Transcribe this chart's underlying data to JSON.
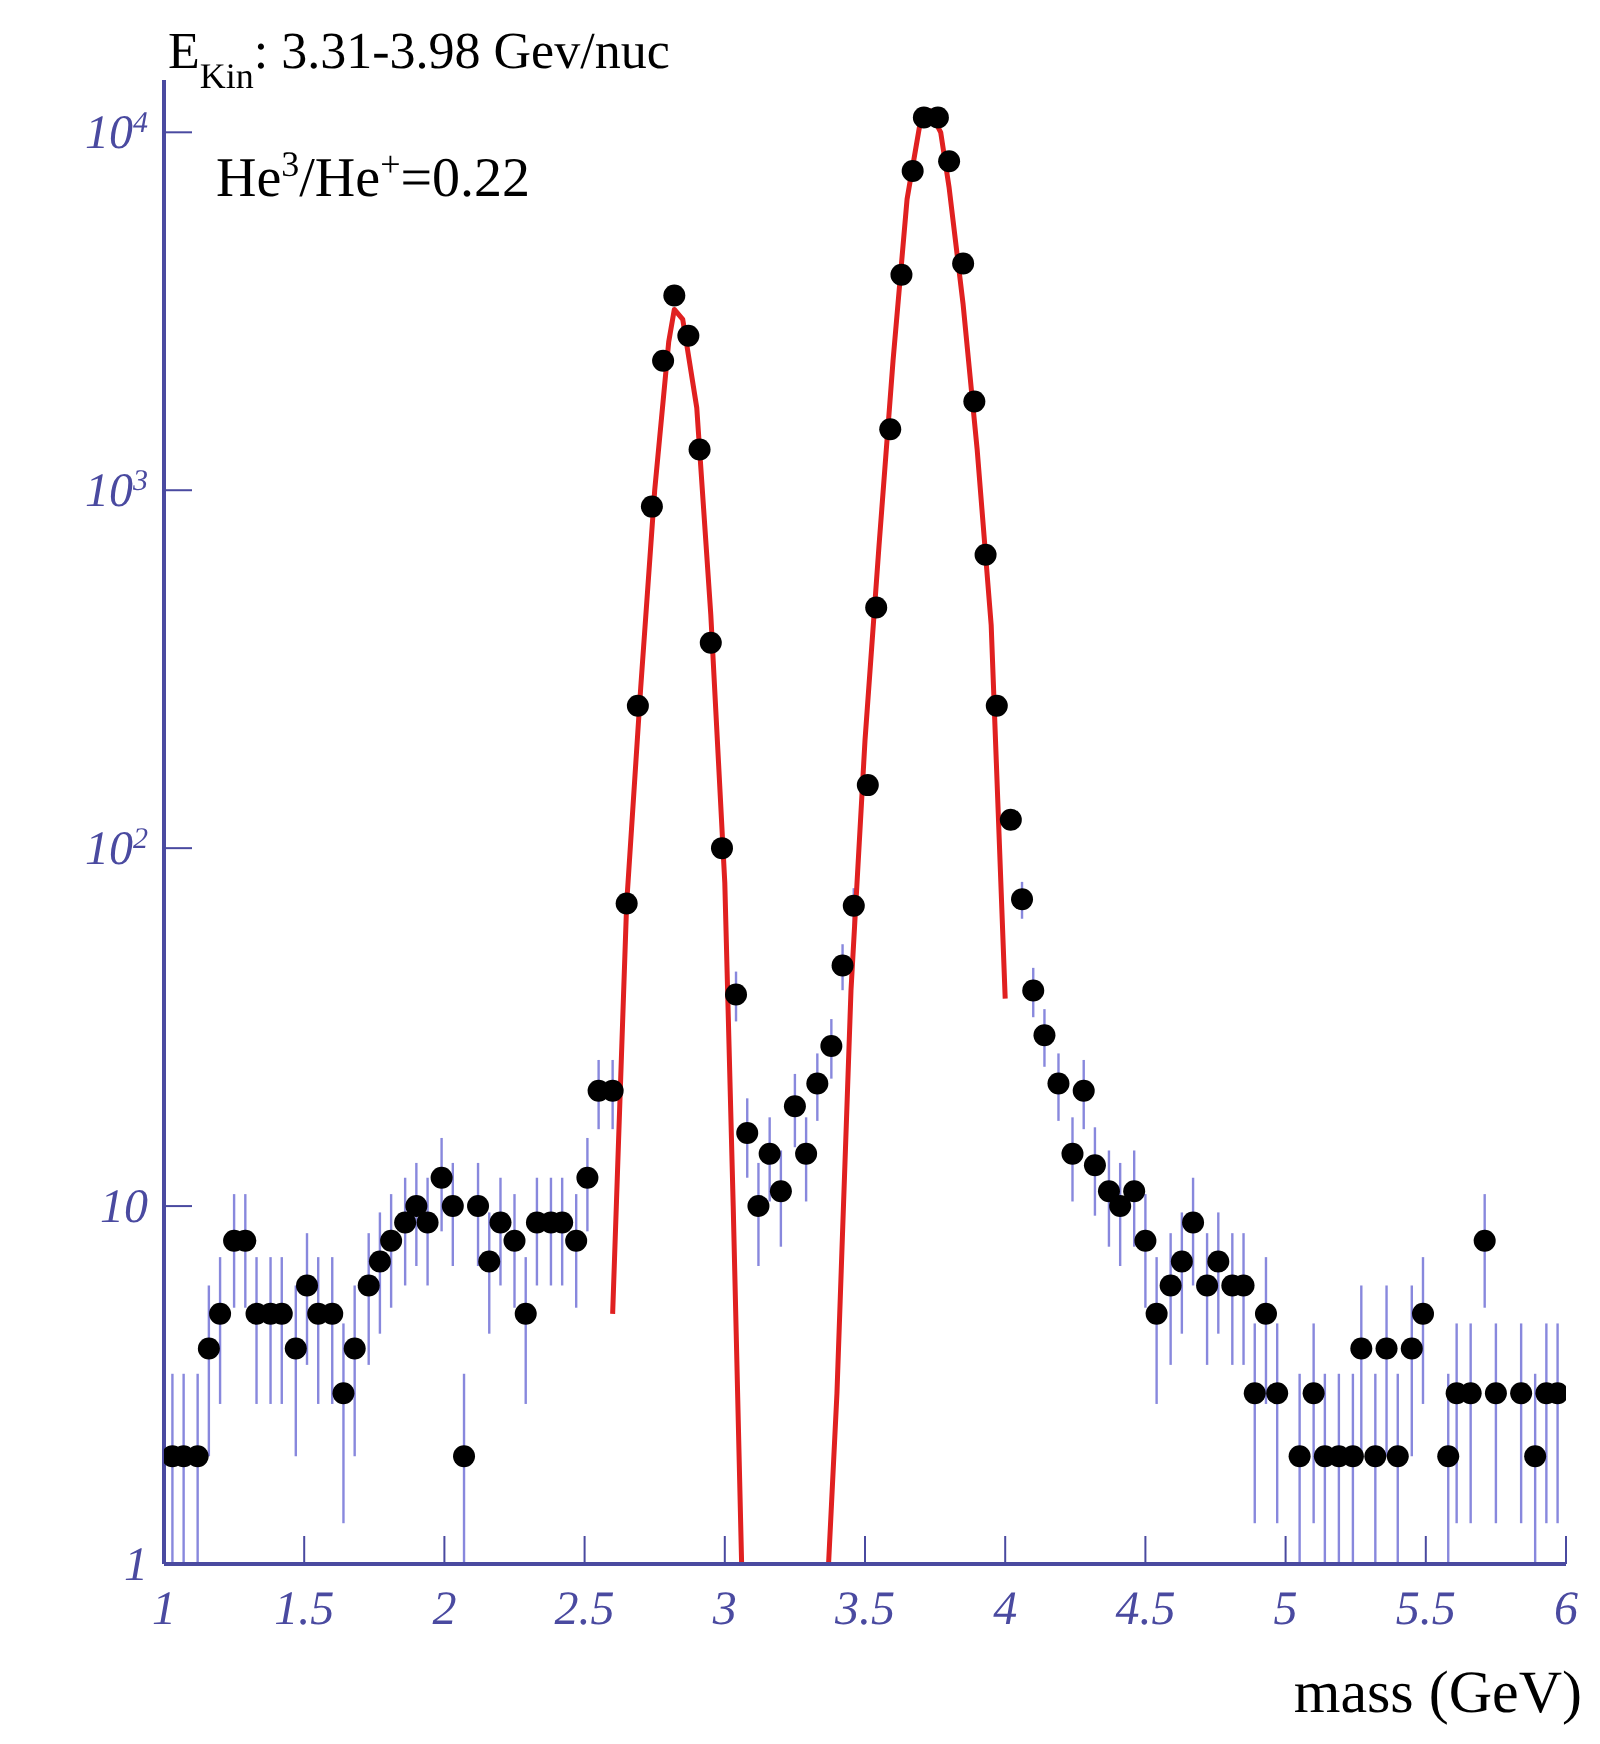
{
  "chart_data": {
    "type": "scatter",
    "title": "E$_{Kin}$: 3.31-3.98 Gev/nuc",
    "xlabel": "mass (GeV)",
    "annotations": [
      "He$^{3}$/He$^{+}$=0.22"
    ],
    "log": "y",
    "xlim": [
      1,
      6
    ],
    "xticks": [
      1,
      1.5,
      2,
      2.5,
      3,
      3.5,
      4,
      4.5,
      5,
      5.5,
      6
    ],
    "ylim": [
      1,
      14000
    ],
    "yticks": [
      1,
      10,
      {
        "value": 100,
        "label": "10$^{2}$"
      },
      {
        "value": 1000,
        "label": "10$^{3}$"
      },
      {
        "value": 10000,
        "label": "10$^{4}$"
      }
    ],
    "grid": false,
    "legend": false,
    "series": [
      {
        "marker": "circle",
        "color": "#000000",
        "x": [
          1.03,
          1.07,
          1.12,
          1.16,
          1.2,
          1.25,
          1.29,
          1.33,
          1.38,
          1.42,
          1.47,
          1.51,
          1.55,
          1.6,
          1.64,
          1.68,
          1.73,
          1.77,
          1.81,
          1.86,
          1.9,
          1.94,
          1.99,
          2.03,
          2.07,
          2.12,
          2.16,
          2.2,
          2.25,
          2.29,
          2.33,
          2.38,
          2.42,
          2.47,
          2.51,
          2.55,
          2.6,
          2.65,
          2.69,
          2.74,
          2.78,
          2.82,
          2.87,
          2.91,
          2.95,
          2.99,
          3.04,
          3.08,
          3.12,
          3.16,
          3.2,
          3.25,
          3.29,
          3.33,
          3.38,
          3.42,
          3.46,
          3.51,
          3.54,
          3.59,
          3.63,
          3.67,
          3.71,
          3.76,
          3.8,
          3.85,
          3.89,
          3.93,
          3.97,
          4.02,
          4.06,
          4.1,
          4.14,
          4.19,
          4.24,
          4.28,
          4.32,
          4.37,
          4.41,
          4.46,
          4.5,
          4.54,
          4.59,
          4.63,
          4.67,
          4.72,
          4.76,
          4.81,
          4.85,
          4.89,
          4.93,
          4.97,
          5.05,
          5.1,
          5.14,
          5.19,
          5.24,
          5.27,
          5.32,
          5.36,
          5.4,
          5.45,
          5.49,
          5.58,
          5.61,
          5.66,
          5.71,
          5.75,
          5.84,
          5.89,
          5.93,
          5.97
        ],
        "values": [
          2,
          2,
          2,
          4,
          5,
          8,
          8,
          5,
          5,
          5,
          4,
          6,
          5,
          5,
          3,
          4,
          6,
          7,
          8,
          9,
          10,
          9,
          12,
          10,
          2,
          10,
          7,
          9,
          8,
          5,
          9,
          9,
          9,
          8,
          12,
          21,
          21,
          70,
          250,
          900,
          2300,
          3500,
          2700,
          1300,
          375,
          100,
          39,
          16,
          10,
          14,
          11,
          19,
          14,
          22,
          28,
          47,
          69,
          150,
          470,
          1480,
          4000,
          7800,
          11000,
          11000,
          8300,
          4300,
          1770,
          660,
          250,
          120,
          72,
          40,
          30,
          22,
          14,
          21,
          13,
          11,
          10,
          11,
          8,
          5,
          6,
          7,
          9,
          6,
          7,
          6,
          6,
          3,
          5,
          3,
          2,
          3,
          2,
          2,
          2,
          4,
          2,
          4,
          2,
          4,
          5,
          2,
          3,
          3,
          8,
          3,
          3,
          2,
          3,
          3
        ],
        "errors": [
          [
            1,
            3.4
          ],
          [
            1,
            3.4
          ],
          [
            1,
            3.4
          ],
          2,
          2.2,
          2.8,
          2.8,
          2.2,
          2.2,
          2.2,
          2,
          2.4,
          2.2,
          2.2,
          1.7,
          2,
          2.4,
          2.6,
          2.8,
          3,
          3.2,
          3,
          3.5,
          3.2,
          [
            1,
            3.4
          ],
          3.2,
          2.6,
          3,
          2.8,
          2.2,
          3,
          3,
          3,
          2.8,
          3.5,
          4.6,
          4.6,
          null,
          null,
          null,
          null,
          null,
          null,
          null,
          null,
          null,
          6.2,
          4,
          3.2,
          3.7,
          3.3,
          4.4,
          3.7,
          4.7,
          5.3,
          6.9,
          8.3,
          null,
          null,
          null,
          null,
          null,
          null,
          null,
          null,
          null,
          null,
          null,
          null,
          null,
          8.5,
          6.3,
          5.5,
          4.7,
          3.7,
          4.6,
          3.6,
          3.3,
          3.2,
          3.3,
          2.8,
          2.2,
          2.4,
          2.6,
          3,
          2.4,
          2.6,
          2.4,
          2.4,
          1.7,
          2.2,
          1.7,
          [
            1,
            3.4
          ],
          1.7,
          [
            1,
            3.4
          ],
          [
            1,
            3.4
          ],
          [
            1,
            3.4
          ],
          2,
          [
            1,
            3.4
          ],
          2,
          [
            1,
            3.4
          ],
          2,
          2.2,
          [
            1,
            3.4
          ],
          1.7,
          1.7,
          2.8,
          1.7,
          1.7,
          [
            1,
            3.4
          ],
          1.7,
          1.7
        ]
      },
      {
        "type": "line",
        "color": "#e02020",
        "x": [
          2.6,
          2.65,
          2.7,
          2.75,
          2.8,
          2.82,
          2.85,
          2.9,
          2.95,
          3.0,
          3.03,
          3.06
        ],
        "values": [
          5,
          70,
          280,
          1000,
          2600,
          3200,
          3000,
          1700,
          450,
          80,
          10,
          1
        ]
      },
      {
        "type": "line",
        "color": "#e02020",
        "x": [
          3.37,
          3.4,
          3.45,
          3.5,
          3.55,
          3.6,
          3.65,
          3.7,
          3.73,
          3.77,
          3.8,
          3.85,
          3.9,
          3.95,
          4.0
        ],
        "values": [
          1,
          3,
          40,
          200,
          700,
          2300,
          6500,
          11000,
          11500,
          10000,
          7000,
          3300,
          1300,
          420,
          38
        ]
      }
    ]
  }
}
